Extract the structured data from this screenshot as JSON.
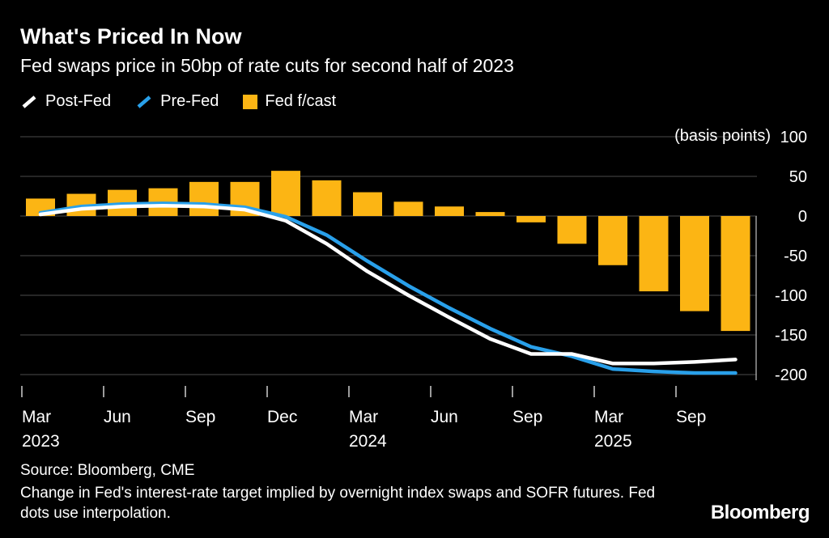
{
  "header": {
    "title": "What's Priced In Now",
    "subtitle": "Fed swaps price in 50bp of rate cuts for second half of 2023"
  },
  "legend": {
    "items": [
      {
        "label": "Post-Fed",
        "color": "#ffffff",
        "marker": "line"
      },
      {
        "label": "Pre-Fed",
        "color": "#29a0ea",
        "marker": "line"
      },
      {
        "label": "Fed f/cast",
        "color": "#fcb514",
        "marker": "square"
      }
    ]
  },
  "footer": {
    "source": "Source: Bloomberg, CME",
    "note": "Change in Fed's interest-rate target implied by overnight index swaps and SOFR futures. Fed dots use interpolation.",
    "logo": "Bloomberg"
  },
  "chart_data": {
    "type": "bar",
    "title": "What's Priced In Now",
    "subtitle": "Fed swaps price in 50bp of rate cuts for second half of 2023",
    "unit_label": "(basis points)",
    "ylabel": "basis points",
    "ylim": [
      -220,
      110
    ],
    "grid": true,
    "background": "#000000",
    "gridline_color": "#4d4d4d",
    "y_ticks": [
      100,
      50,
      0,
      -50,
      -100,
      -150,
      -200
    ],
    "x_tick_positions": [
      0,
      2,
      4,
      6,
      8,
      10,
      12,
      14,
      16
    ],
    "x_tick_labels": [
      {
        "month": "Mar",
        "year": "2023"
      },
      {
        "month": "Jun",
        "year": ""
      },
      {
        "month": "Sep",
        "year": ""
      },
      {
        "month": "Dec",
        "year": ""
      },
      {
        "month": "Mar",
        "year": "2024"
      },
      {
        "month": "Jun",
        "year": ""
      },
      {
        "month": "Sep",
        "year": ""
      },
      {
        "month": "Mar",
        "year": "2025"
      },
      {
        "month": "Sep",
        "year": ""
      }
    ],
    "bars": {
      "name": "Fed f/cast",
      "color": "#fcb514",
      "values": [
        22,
        28,
        33,
        35,
        43,
        43,
        57,
        45,
        30,
        18,
        12,
        5,
        -8,
        -35,
        -62,
        -95,
        -120,
        -145
      ]
    },
    "series": [
      {
        "name": "Post-Fed",
        "color": "#ffffff",
        "values": [
          2,
          9,
          12,
          13,
          12,
          8,
          -6,
          -35,
          -70,
          -100,
          -128,
          -155,
          -174,
          -174,
          -186,
          -186,
          -184,
          -181
        ]
      },
      {
        "name": "Pre-Fed",
        "color": "#29a0ea",
        "values": [
          4,
          12,
          15,
          16,
          15,
          11,
          -1,
          -24,
          -57,
          -88,
          -116,
          -142,
          -165,
          -177,
          -193,
          -196,
          -198,
          -198
        ]
      }
    ]
  }
}
